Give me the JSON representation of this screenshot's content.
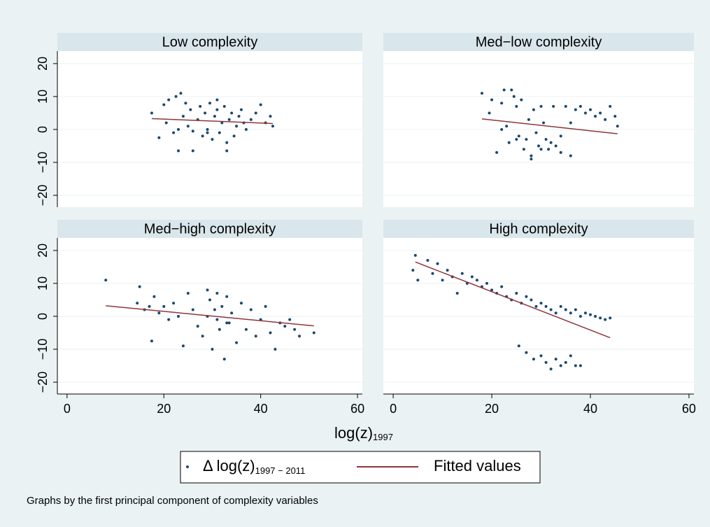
{
  "chart_data": {
    "type": "scatter",
    "note": "Graphs by the first principal component of complexity variables",
    "xlabel": "log(z)",
    "xlabel_sub": "1997",
    "xlim": [
      -2,
      61
    ],
    "xticks": [
      0,
      20,
      40,
      60
    ],
    "ylim": [
      -23.6,
      23.8
    ],
    "yticks": [
      {
        "value": -20,
        "label": "−20"
      },
      {
        "value": -10,
        "label": "−10"
      },
      0,
      10,
      20
    ],
    "grid": true,
    "series": [
      {
        "name": "Δ log(z)",
        "name_sub": "1997 − 2011",
        "color": "#1a476f"
      },
      {
        "name": "Fitted values",
        "color": "#90353b"
      }
    ],
    "panels": [
      {
        "title": "Low complexity",
        "x": [
          17.5,
          19,
          20,
          20.5,
          21,
          22,
          22.5,
          23,
          23.5,
          24,
          24.5,
          25,
          25.5,
          26,
          27,
          27.5,
          28,
          28.5,
          29,
          29.5,
          30,
          30.5,
          31,
          31.5,
          32,
          32.5,
          33,
          33.5,
          34,
          34.5,
          35,
          35.5,
          36,
          36.5,
          37,
          38,
          39,
          40,
          41,
          42,
          42.5,
          23,
          26,
          31,
          33,
          29
        ],
        "values": [
          5,
          -2.5,
          7.5,
          2,
          9,
          -1,
          10,
          -6.5,
          11,
          4,
          8,
          1,
          6,
          -0.5,
          3,
          7,
          -2,
          5,
          0,
          8,
          -3,
          4,
          6,
          -1,
          2,
          7,
          -6.5,
          3,
          5,
          -2,
          1,
          4,
          6,
          2,
          0,
          3,
          5,
          7.5,
          2,
          4,
          1,
          0,
          -6.5,
          9,
          -4,
          -1
        ],
        "fit_x": [
          17.5,
          42.5
        ],
        "fit_values": [
          3.3,
          1.8
        ]
      },
      {
        "title": "Med−low complexity",
        "x": [
          18,
          19.5,
          20,
          21,
          22,
          22.5,
          23,
          23.5,
          24,
          24.5,
          25,
          25.5,
          26,
          26.5,
          27,
          27.5,
          28,
          28.5,
          29,
          29.5,
          30,
          30.5,
          31,
          31.5,
          32,
          32.5,
          33,
          34,
          35,
          36,
          37,
          38,
          39,
          40,
          41,
          42,
          43,
          44,
          45,
          45.5,
          28,
          30,
          34,
          25,
          22,
          36
        ],
        "values": [
          11,
          5,
          9,
          -7,
          8,
          12,
          1,
          -4,
          12,
          10,
          7,
          -2,
          9,
          -6,
          -3,
          3,
          -8,
          6,
          -1,
          -5,
          7,
          2,
          -3,
          -6,
          -4,
          7,
          -5,
          -7,
          7,
          -8,
          6,
          7,
          5,
          6,
          4,
          5,
          3,
          7,
          4,
          1,
          -9,
          -6,
          -2,
          -3,
          0,
          2
        ],
        "fit_x": [
          18,
          45.5
        ],
        "fit_values": [
          3.2,
          -1.3
        ]
      },
      {
        "title": "Med−high complexity",
        "x": [
          8,
          14.5,
          15,
          16,
          17,
          17.5,
          18,
          19,
          20,
          21,
          22,
          23,
          24,
          25,
          26,
          27,
          28,
          29,
          29.5,
          30,
          30.5,
          31,
          31.5,
          32,
          32.5,
          33,
          33.5,
          34,
          35,
          36,
          37,
          38,
          39,
          40,
          41,
          42,
          43,
          44,
          45,
          46,
          47,
          48,
          51,
          31,
          33,
          29
        ],
        "values": [
          11,
          4,
          9,
          2,
          3,
          -7.5,
          6,
          1,
          3,
          -1,
          4,
          0,
          -9,
          7,
          2,
          -3,
          -6,
          8,
          5,
          -10,
          2,
          7,
          -4,
          3,
          -13,
          6,
          -2,
          1,
          -8,
          4,
          -4,
          2,
          -6,
          -1,
          3,
          -5,
          -10,
          -2,
          -3,
          -1,
          -4,
          -6,
          -5,
          -1,
          -2,
          0
        ],
        "fit_x": [
          8,
          51
        ],
        "fit_values": [
          3.2,
          -2.9
        ]
      },
      {
        "title": "High complexity",
        "x": [
          4,
          4.5,
          5,
          7,
          8,
          9,
          10,
          11,
          12,
          13,
          14,
          15,
          16,
          17,
          18,
          19,
          20,
          21,
          22,
          23,
          24,
          25,
          26,
          27,
          28,
          29,
          30,
          31,
          32,
          33,
          34,
          35,
          36,
          37,
          38,
          39,
          40,
          41,
          42,
          43,
          44,
          25.5,
          27,
          28.5,
          30,
          31,
          32,
          33,
          34,
          35,
          36,
          37,
          38
        ],
        "values": [
          14,
          18.5,
          11,
          17,
          13,
          16,
          11,
          14,
          12,
          7,
          13,
          10,
          12,
          11,
          9,
          10,
          8,
          7,
          9,
          6,
          5,
          7,
          4,
          6,
          5,
          3,
          4,
          3,
          2,
          1,
          3,
          2,
          1,
          2,
          0,
          1,
          0.5,
          0,
          -0.5,
          -1,
          -0.5,
          -9,
          -11,
          -13,
          -12,
          -14,
          -16,
          -13,
          -15,
          -14,
          -12,
          -15,
          -15
        ],
        "fit_x": [
          4.5,
          44
        ],
        "fit_values": [
          16.5,
          -6.5
        ]
      }
    ]
  }
}
